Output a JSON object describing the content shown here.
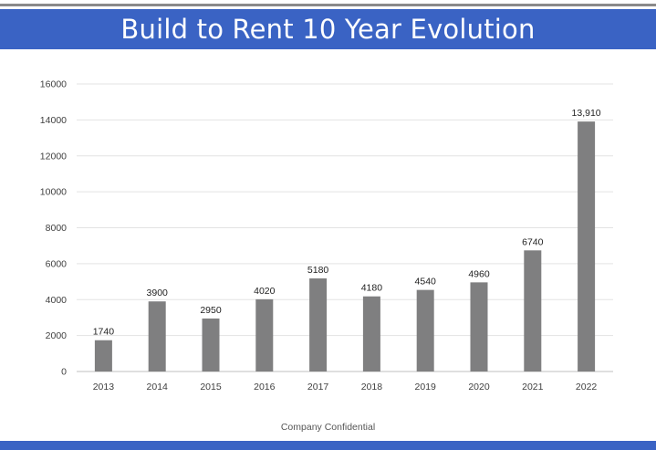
{
  "page": {
    "title": "Build to Rent 10 Year Evolution",
    "footer": "Company Confidential",
    "accent_color": "#3a63c4"
  },
  "chart_data": {
    "type": "bar",
    "title": "",
    "xlabel": "",
    "ylabel": "",
    "categories": [
      "2013",
      "2014",
      "2015",
      "2016",
      "2017",
      "2018",
      "2019",
      "2020",
      "2021",
      "2022"
    ],
    "values": [
      1740,
      3900,
      2950,
      4020,
      5180,
      4180,
      4540,
      4960,
      6740,
      13910
    ],
    "data_labels": [
      "1740",
      "3900",
      "2950",
      "4020",
      "5180",
      "4180",
      "4540",
      "4960",
      "6740",
      "13,910"
    ],
    "ylim": [
      0,
      16000
    ],
    "yticks": [
      "0",
      "2000",
      "4000",
      "6000",
      "8000",
      "10000",
      "12000",
      "14000",
      "16000"
    ],
    "grid": true,
    "legend": "none",
    "bar_color": "#7f7f80"
  }
}
